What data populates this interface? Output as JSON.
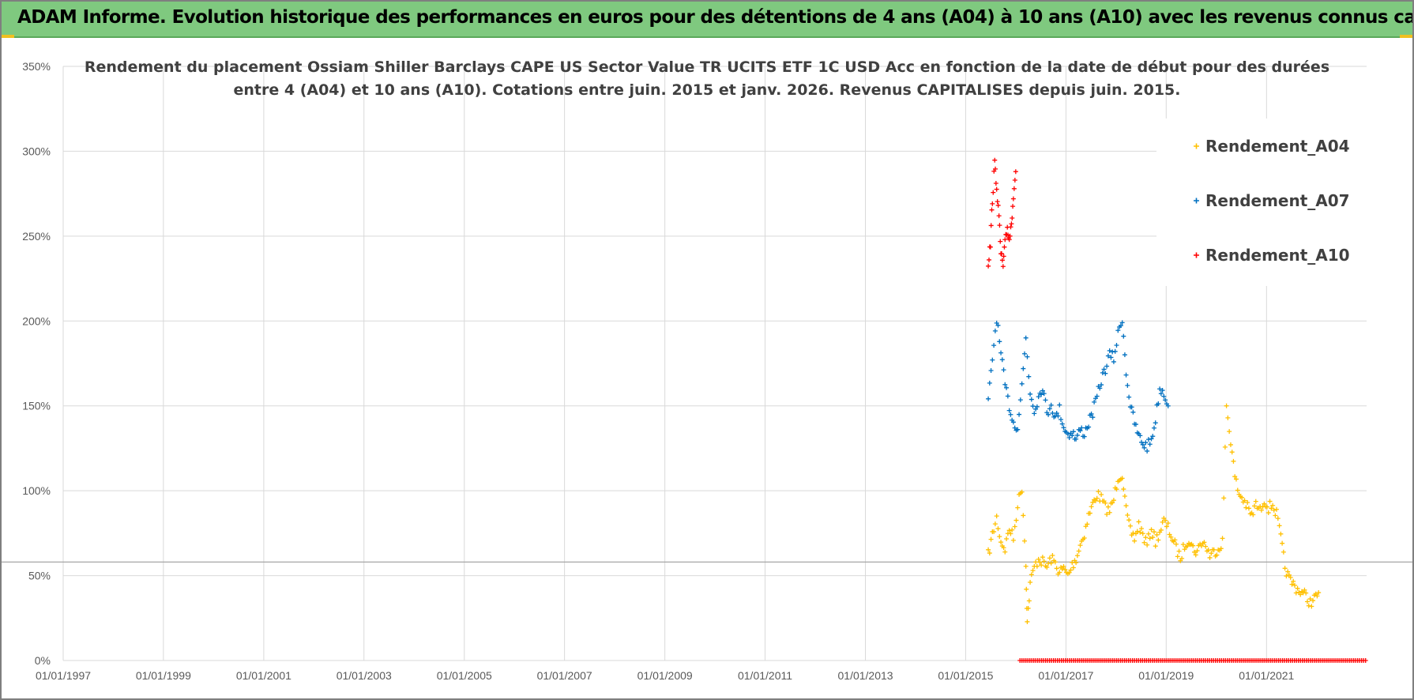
{
  "header": {
    "banner_title": "ADAM Informe. Evolution historique des performances en euros pour des détentions de 4 ans (A04) à 10 ans (A10) avec les revenus connus capitalisés"
  },
  "colors": {
    "banner_bg": "#7fc97f",
    "A04": "#ffc000",
    "A07": "#0070c0",
    "A10": "#ff0000",
    "grid": "#d9d9d9",
    "reference_line": "#a6a6a6"
  },
  "chart_data": {
    "type": "scatter",
    "title_lines": [
      "Rendement du placement Ossiam Shiller Barclays CAPE US Sector Value TR UCITS ETF 1C USD Acc en fonction de la date de début pour des durées",
      "entre 4 (A04) et 10 ans (A10). Cotations entre juin. 2015 et janv. 2026. Revenus CAPITALISES depuis juin. 2015."
    ],
    "x_axis": {
      "type": "date",
      "range": [
        "1997-01-01",
        "2022-12-31"
      ],
      "tick_labels": [
        "01/01/1997",
        "01/01/1999",
        "01/01/2001",
        "01/01/2003",
        "01/01/2005",
        "01/01/2007",
        "01/01/2009",
        "01/01/2011",
        "01/01/2013",
        "01/01/2015",
        "01/01/2017",
        "01/01/2019",
        "01/01/2021"
      ]
    },
    "y_axis": {
      "range": [
        0,
        3.5
      ],
      "tick_values": [
        0,
        0.5,
        1,
        1.5,
        2,
        2.5,
        3,
        3.5
      ],
      "tick_labels": [
        "0%",
        "50%",
        "100%",
        "150%",
        "200%",
        "250%",
        "300%",
        "350%"
      ]
    },
    "grid": true,
    "legend_position": "top-right",
    "reference_line_y": 0.58,
    "series": [
      {
        "name": "Rendement_A04",
        "color": "#ffc000",
        "marker": "+",
        "points": [
          [
            "2015-06-15",
            0.62
          ],
          [
            "2015-07-15",
            0.74
          ],
          [
            "2015-08-15",
            0.84
          ],
          [
            "2015-09-15",
            0.7
          ],
          [
            "2015-10-15",
            0.66
          ],
          [
            "2015-11-15",
            0.78
          ],
          [
            "2015-12-15",
            0.72
          ],
          [
            "2016-01-15",
            0.92
          ],
          [
            "2016-02-15",
            1.02
          ],
          [
            "2016-03-15",
            0.56
          ],
          [
            "2016-03-25",
            0.22
          ],
          [
            "2016-04-15",
            0.45
          ],
          [
            "2016-05-15",
            0.55
          ],
          [
            "2016-06-15",
            0.6
          ],
          [
            "2016-07-15",
            0.58
          ],
          [
            "2016-08-15",
            0.55
          ],
          [
            "2016-09-15",
            0.6
          ],
          [
            "2016-10-15",
            0.57
          ],
          [
            "2016-11-15",
            0.52
          ],
          [
            "2016-12-15",
            0.54
          ],
          [
            "2017-01-15",
            0.5
          ],
          [
            "2017-02-15",
            0.56
          ],
          [
            "2017-03-15",
            0.6
          ],
          [
            "2017-04-15",
            0.68
          ],
          [
            "2017-05-15",
            0.75
          ],
          [
            "2017-06-15",
            0.85
          ],
          [
            "2017-07-15",
            0.92
          ],
          [
            "2017-08-15",
            0.98
          ],
          [
            "2017-09-15",
            0.95
          ],
          [
            "2017-10-15",
            0.9
          ],
          [
            "2017-11-15",
            0.88
          ],
          [
            "2017-12-15",
            0.95
          ],
          [
            "2018-01-15",
            1.08
          ],
          [
            "2018-02-15",
            1.1
          ],
          [
            "2018-03-15",
            0.88
          ],
          [
            "2018-04-15",
            0.76
          ],
          [
            "2018-05-15",
            0.72
          ],
          [
            "2018-06-15",
            0.8
          ],
          [
            "2018-07-15",
            0.74
          ],
          [
            "2018-08-15",
            0.68
          ],
          [
            "2018-09-15",
            0.78
          ],
          [
            "2018-10-15",
            0.7
          ],
          [
            "2018-11-15",
            0.76
          ],
          [
            "2018-12-15",
            0.82
          ],
          [
            "2019-01-15",
            0.78
          ],
          [
            "2019-02-15",
            0.72
          ],
          [
            "2019-03-15",
            0.66
          ],
          [
            "2019-04-15",
            0.6
          ],
          [
            "2019-05-15",
            0.68
          ],
          [
            "2019-06-15",
            0.72
          ],
          [
            "2019-07-15",
            0.66
          ],
          [
            "2019-08-15",
            0.64
          ],
          [
            "2019-09-15",
            0.7
          ],
          [
            "2019-10-15",
            0.68
          ],
          [
            "2019-11-15",
            0.62
          ],
          [
            "2019-12-15",
            0.64
          ],
          [
            "2020-01-15",
            0.66
          ],
          [
            "2020-02-15",
            0.7
          ],
          [
            "2020-03-15",
            1.5
          ],
          [
            "2020-04-15",
            1.3
          ],
          [
            "2020-05-15",
            1.08
          ],
          [
            "2020-06-15",
            0.98
          ],
          [
            "2020-07-15",
            0.95
          ],
          [
            "2020-08-15",
            0.9
          ],
          [
            "2020-09-15",
            0.85
          ],
          [
            "2020-10-15",
            0.92
          ],
          [
            "2020-11-15",
            0.88
          ],
          [
            "2020-12-15",
            0.95
          ],
          [
            "2021-01-15",
            0.9
          ],
          [
            "2021-02-15",
            0.92
          ],
          [
            "2021-03-15",
            0.86
          ],
          [
            "2021-04-15",
            0.72
          ],
          [
            "2021-05-15",
            0.55
          ],
          [
            "2021-06-15",
            0.48
          ],
          [
            "2021-07-15",
            0.45
          ],
          [
            "2021-08-15",
            0.42
          ],
          [
            "2021-09-15",
            0.4
          ],
          [
            "2021-10-15",
            0.38
          ],
          [
            "2021-11-15",
            0.34
          ],
          [
            "2021-12-15",
            0.36
          ],
          [
            "2022-01-15",
            0.4
          ]
        ]
      },
      {
        "name": "Rendement_A07",
        "color": "#0070c0",
        "marker": "+",
        "points": [
          [
            "2015-06-15",
            1.52
          ],
          [
            "2015-07-15",
            1.78
          ],
          [
            "2015-08-15",
            2.02
          ],
          [
            "2015-09-15",
            1.8
          ],
          [
            "2015-10-15",
            1.62
          ],
          [
            "2015-11-15",
            1.5
          ],
          [
            "2015-12-15",
            1.4
          ],
          [
            "2016-01-15",
            1.38
          ],
          [
            "2016-02-15",
            1.62
          ],
          [
            "2016-03-15",
            1.9
          ],
          [
            "2016-04-15",
            1.58
          ],
          [
            "2016-05-15",
            1.48
          ],
          [
            "2016-06-15",
            1.55
          ],
          [
            "2016-07-15",
            1.62
          ],
          [
            "2016-08-15",
            1.45
          ],
          [
            "2016-09-15",
            1.52
          ],
          [
            "2016-10-15",
            1.42
          ],
          [
            "2016-11-15",
            1.48
          ],
          [
            "2016-12-15",
            1.38
          ],
          [
            "2017-01-15",
            1.33
          ],
          [
            "2017-02-15",
            1.35
          ],
          [
            "2017-03-15",
            1.3
          ],
          [
            "2017-04-15",
            1.36
          ],
          [
            "2017-05-15",
            1.34
          ],
          [
            "2017-06-15",
            1.4
          ],
          [
            "2017-07-15",
            1.46
          ],
          [
            "2017-08-15",
            1.55
          ],
          [
            "2017-09-15",
            1.65
          ],
          [
            "2017-10-15",
            1.72
          ],
          [
            "2017-11-15",
            1.8
          ],
          [
            "2017-12-15",
            1.78
          ],
          [
            "2018-01-15",
            1.92
          ],
          [
            "2018-02-15",
            2.02
          ],
          [
            "2018-03-15",
            1.7
          ],
          [
            "2018-04-15",
            1.5
          ],
          [
            "2018-05-15",
            1.4
          ],
          [
            "2018-06-15",
            1.32
          ],
          [
            "2018-07-15",
            1.28
          ],
          [
            "2018-08-15",
            1.26
          ],
          [
            "2018-09-15",
            1.3
          ],
          [
            "2018-10-15",
            1.42
          ],
          [
            "2018-11-15",
            1.6
          ],
          [
            "2018-12-15",
            1.58
          ],
          [
            "2019-01-15",
            1.5
          ]
        ]
      },
      {
        "name": "Rendement_A10",
        "color": "#ff0000",
        "marker": "+",
        "points": [
          [
            "2015-06-15",
            2.35
          ],
          [
            "2015-07-01",
            2.45
          ],
          [
            "2015-07-15",
            2.72
          ],
          [
            "2015-08-01",
            2.92
          ],
          [
            "2015-08-15",
            2.8
          ],
          [
            "2015-09-01",
            2.6
          ],
          [
            "2015-09-15",
            2.4
          ],
          [
            "2015-10-01",
            2.32
          ],
          [
            "2015-10-15",
            2.45
          ],
          [
            "2015-11-01",
            2.55
          ],
          [
            "2015-11-15",
            2.48
          ],
          [
            "2015-12-01",
            2.58
          ],
          [
            "2015-12-15",
            2.75
          ],
          [
            "2016-01-01",
            2.88
          ]
        ]
      },
      {
        "name": "",
        "color": "#ff0000",
        "marker": "+",
        "description_hidden": true,
        "points": [
          [
            "2016-02-01",
            0.0
          ],
          [
            "2022-12-31",
            0.0
          ]
        ]
      }
    ]
  },
  "legend": {
    "items": [
      {
        "label": "Rendement_A04",
        "color": "#ffc000"
      },
      {
        "label": "Rendement_A07",
        "color": "#0070c0"
      },
      {
        "label": "Rendement_A10",
        "color": "#ff0000"
      }
    ]
  }
}
